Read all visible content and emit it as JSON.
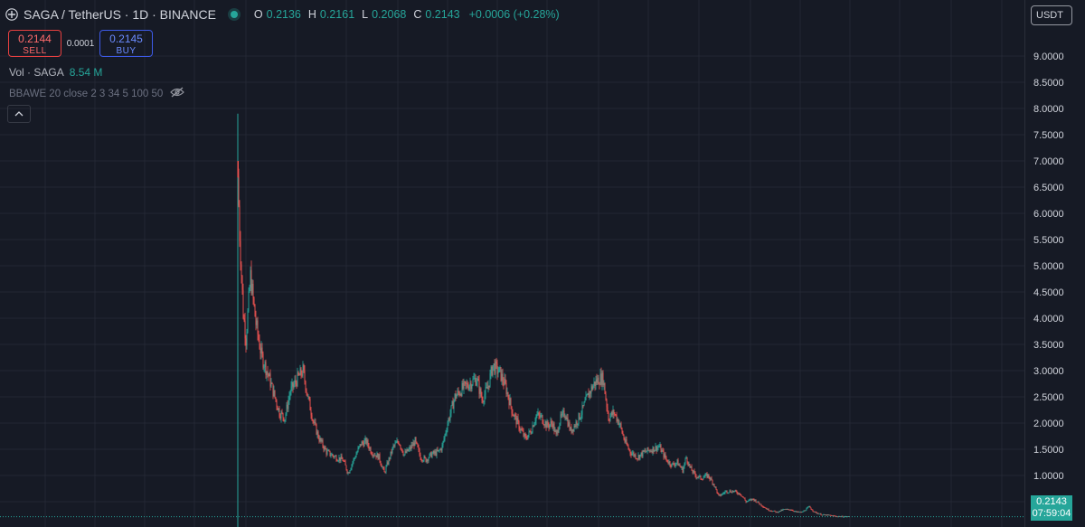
{
  "header": {
    "symbol": "SAGA / TetherUS · 1D · BINANCE",
    "ohlc": {
      "o_label": "O",
      "o": "0.2136",
      "h_label": "H",
      "h": "0.2161",
      "l_label": "L",
      "l": "0.2068",
      "c_label": "C",
      "c": "0.2143"
    },
    "change": "+0.0006 (+0.28%)"
  },
  "trade": {
    "sell_price": "0.2144",
    "sell_label": "SELL",
    "spread": "0.0001",
    "buy_price": "0.2145",
    "buy_label": "BUY"
  },
  "volume": {
    "label": "Vol · SAGA",
    "value": "8.54 M"
  },
  "indicator": {
    "label": "BBAWE 20 close 2 3 34 5 100 50"
  },
  "currency": {
    "label": "USDT"
  },
  "price_label": {
    "price": "0.2143",
    "countdown": "07:59:04"
  },
  "colors": {
    "up": "#26a69a",
    "down": "#ef5350",
    "background": "#161a25",
    "grid": "#232733",
    "axis_text": "#d1d4dc"
  },
  "chart_data": {
    "type": "candlestick",
    "ylim": [
      0.0,
      9.5
    ],
    "y_ticks": [
      "0.5000",
      "1.0000",
      "1.5000",
      "2.0000",
      "2.5000",
      "3.0000",
      "3.5000",
      "4.0000",
      "4.5000",
      "5.0000",
      "5.5000",
      "6.0000",
      "6.5000",
      "7.0000",
      "7.5000",
      "8.0000",
      "8.5000",
      "9.0000"
    ],
    "grid": true,
    "first_candle": {
      "open": 7.0,
      "high": 7.9,
      "low": 0.1,
      "close": 6.7
    },
    "close_path": [
      [
        0,
        6.7
      ],
      [
        2,
        5.6
      ],
      [
        6,
        4.1
      ],
      [
        9,
        3.6
      ],
      [
        14,
        4.8
      ],
      [
        20,
        3.9
      ],
      [
        26,
        3.3
      ],
      [
        34,
        2.9
      ],
      [
        40,
        2.55
      ],
      [
        46,
        2.2
      ],
      [
        52,
        2.1
      ],
      [
        58,
        2.6
      ],
      [
        66,
        2.85
      ],
      [
        72,
        3.0
      ],
      [
        78,
        2.45
      ],
      [
        84,
        2.0
      ],
      [
        90,
        1.7
      ],
      [
        98,
        1.45
      ],
      [
        108,
        1.35
      ],
      [
        116,
        1.3
      ],
      [
        122,
        1.05
      ],
      [
        128,
        1.3
      ],
      [
        136,
        1.6
      ],
      [
        142,
        1.65
      ],
      [
        148,
        1.45
      ],
      [
        156,
        1.35
      ],
      [
        162,
        1.05
      ],
      [
        166,
        1.25
      ],
      [
        172,
        1.55
      ],
      [
        178,
        1.65
      ],
      [
        184,
        1.4
      ],
      [
        190,
        1.5
      ],
      [
        196,
        1.65
      ],
      [
        202,
        1.35
      ],
      [
        208,
        1.3
      ],
      [
        214,
        1.4
      ],
      [
        222,
        1.45
      ],
      [
        226,
        1.55
      ],
      [
        232,
        2.0
      ],
      [
        240,
        2.5
      ],
      [
        248,
        2.65
      ],
      [
        256,
        2.75
      ],
      [
        264,
        2.85
      ],
      [
        270,
        2.45
      ],
      [
        276,
        2.65
      ],
      [
        282,
        3.1
      ],
      [
        290,
        2.95
      ],
      [
        296,
        2.7
      ],
      [
        304,
        2.2
      ],
      [
        312,
        1.9
      ],
      [
        318,
        1.7
      ],
      [
        324,
        1.85
      ],
      [
        330,
        2.15
      ],
      [
        336,
        2.1
      ],
      [
        342,
        1.95
      ],
      [
        348,
        2.0
      ],
      [
        352,
        1.75
      ],
      [
        356,
        2.05
      ],
      [
        362,
        2.2
      ],
      [
        368,
        1.85
      ],
      [
        374,
        2.0
      ],
      [
        380,
        2.2
      ],
      [
        388,
        2.55
      ],
      [
        394,
        2.75
      ],
      [
        400,
        2.85
      ],
      [
        404,
        2.85
      ],
      [
        410,
        2.1
      ],
      [
        416,
        2.2
      ],
      [
        422,
        2.0
      ],
      [
        428,
        1.65
      ],
      [
        434,
        1.45
      ],
      [
        442,
        1.35
      ],
      [
        450,
        1.45
      ],
      [
        458,
        1.5
      ],
      [
        466,
        1.55
      ],
      [
        474,
        1.3
      ],
      [
        480,
        1.2
      ],
      [
        486,
        1.25
      ],
      [
        492,
        1.1
      ],
      [
        496,
        1.35
      ],
      [
        500,
        1.15
      ],
      [
        506,
        1.0
      ],
      [
        512,
        0.95
      ],
      [
        520,
        1.0
      ],
      [
        526,
        0.85
      ],
      [
        532,
        0.6
      ],
      [
        540,
        0.7
      ],
      [
        548,
        0.7
      ],
      [
        556,
        0.65
      ],
      [
        562,
        0.5
      ],
      [
        570,
        0.55
      ],
      [
        578,
        0.45
      ],
      [
        586,
        0.35
      ],
      [
        596,
        0.3
      ],
      [
        604,
        0.35
      ],
      [
        612,
        0.35
      ],
      [
        618,
        0.3
      ],
      [
        624,
        0.3
      ],
      [
        632,
        0.4
      ],
      [
        638,
        0.3
      ],
      [
        646,
        0.25
      ],
      [
        654,
        0.24
      ],
      [
        662,
        0.22
      ],
      [
        670,
        0.215
      ],
      [
        676,
        0.2143
      ]
    ],
    "last_close": 0.2143,
    "last_price_line": 0.2143
  }
}
